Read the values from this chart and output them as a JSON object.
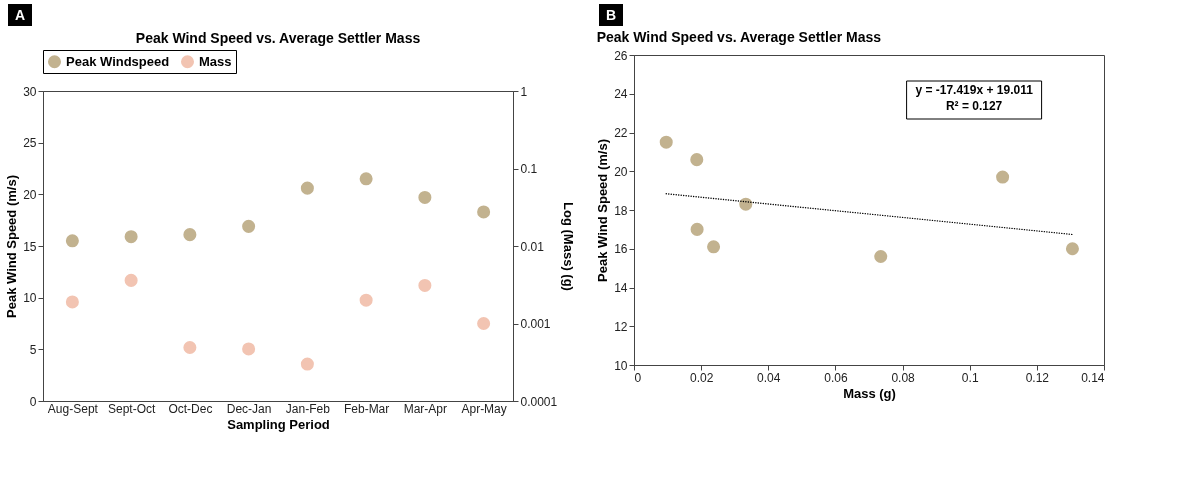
{
  "chart_data": [
    {
      "type": "scatter",
      "title": "Peak Wind Speed vs. Average Settler Mass",
      "xlabel": "Sampling Period",
      "ylabel": "Peak Wind Speed (m/s)",
      "y2label": "Log (Mass) (g)",
      "categories": [
        "Aug-Sept",
        "Sept-Oct",
        "Oct-Dec",
        "Dec-Jan",
        "Jan-Feb",
        "Feb-Mar",
        "Mar-Apr",
        "Apr-May"
      ],
      "series": [
        {
          "name": "Peak Windspeed",
          "color": "#c2b28f",
          "values": [
            15.5,
            15.9,
            16.1,
            16.9,
            20.6,
            21.5,
            19.7,
            18.3
          ]
        },
        {
          "name": "Mass",
          "color": "#f2c4b2",
          "axis": "y2",
          "values": [
            0.0019,
            0.0036,
            0.00049,
            0.00047,
            0.0003,
            0.002,
            0.0031,
            0.001
          ]
        }
      ],
      "ylim": [
        0,
        30
      ],
      "yticks": [
        0,
        5,
        10,
        15,
        20,
        25,
        30
      ],
      "y2lim": [
        0.0001,
        1
      ],
      "y2ticks": [
        0.0001,
        0.001,
        0.01,
        0.1,
        1
      ],
      "log": "y2",
      "legend": "top",
      "marker": "circle",
      "annotations": [
        "A"
      ]
    },
    {
      "type": "scatter",
      "title": "Peak Wind Speed vs. Average Settler Mass",
      "xlabel": "Mass (g)",
      "ylabel": "Peak Wind Speed (m/s)",
      "series": [
        {
          "color": "#c2b28f",
          "x": [
            0.0096,
            0.0187,
            0.0188,
            0.0237,
            0.0333,
            0.0735,
            0.1098,
            0.1306
          ],
          "values": [
            21.5,
            20.6,
            17.0,
            16.1,
            18.3,
            15.6,
            19.7,
            16.0
          ]
        },
        {
          "type": "line",
          "color": "#000000",
          "line_style": "dotted",
          "marker": "none",
          "x": [
            0.0096,
            0.1306
          ],
          "values": [
            18.84,
            16.74
          ]
        }
      ],
      "xlim": [
        0,
        0.14
      ],
      "xticks": [
        0,
        0.02,
        0.04,
        0.06,
        0.08,
        0.1,
        0.12,
        0.14
      ],
      "ylim": [
        10,
        26
      ],
      "yticks": [
        10,
        12,
        14,
        16,
        18,
        20,
        22,
        24,
        26
      ],
      "marker": "circle",
      "annotations": [
        "B",
        "y = -17.419x + 19.011",
        "R² = 0.127"
      ]
    }
  ]
}
